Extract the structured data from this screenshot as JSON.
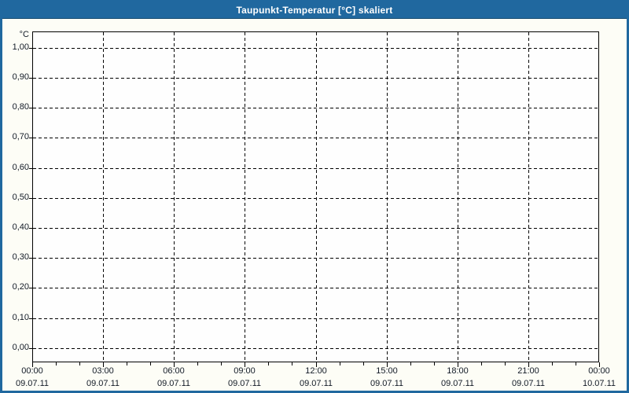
{
  "titlebar": {
    "title": "Taupunkt-Temperatur [°C] skaliert"
  },
  "colors": {
    "frame_border": "#20689f",
    "titlebar_bg": "#20689f",
    "titlebar_edge": "#14496f",
    "titlebar_text": "#ffffff",
    "page_bg": "#fdfdf6",
    "plot_bg": "#fefefe",
    "grid": "#000000",
    "axis": "#000000",
    "label_color": "#121a26"
  },
  "chart_data": {
    "type": "line",
    "title": "Taupunkt-Temperatur [°C] skaliert",
    "ylabel": "°C",
    "xlabel": "",
    "ylim": [
      -0.048,
      1.055
    ],
    "grid": {
      "style": "dashed",
      "color": "#000000"
    },
    "legend": null,
    "y_ticks": [
      {
        "value": 1.0,
        "label": "1,00"
      },
      {
        "value": 0.9,
        "label": "0,90"
      },
      {
        "value": 0.8,
        "label": "0,80"
      },
      {
        "value": 0.7,
        "label": "0,70"
      },
      {
        "value": 0.6,
        "label": "0,60"
      },
      {
        "value": 0.5,
        "label": "0,50"
      },
      {
        "value": 0.4,
        "label": "0,40"
      },
      {
        "value": 0.3,
        "label": "0,30"
      },
      {
        "value": 0.2,
        "label": "0,20"
      },
      {
        "value": 0.1,
        "label": "0,10"
      },
      {
        "value": 0.0,
        "label": "0,00"
      }
    ],
    "x_axis": {
      "range_hours": [
        0,
        24
      ],
      "minor_tick_step_hours": 1,
      "major_ticks": [
        {
          "hour": 0,
          "time": "00:00",
          "date": "09.07.11"
        },
        {
          "hour": 3,
          "time": "03:00",
          "date": "09.07.11"
        },
        {
          "hour": 6,
          "time": "06:00",
          "date": "09.07.11"
        },
        {
          "hour": 9,
          "time": "09:00",
          "date": "09.07.11"
        },
        {
          "hour": 12,
          "time": "12:00",
          "date": "09.07.11"
        },
        {
          "hour": 15,
          "time": "15:00",
          "date": "09.07.11"
        },
        {
          "hour": 18,
          "time": "18:00",
          "date": "09.07.11"
        },
        {
          "hour": 21,
          "time": "21:00",
          "date": "09.07.11"
        },
        {
          "hour": 24,
          "time": "00:00",
          "date": "10.07.11"
        }
      ]
    },
    "series": []
  }
}
